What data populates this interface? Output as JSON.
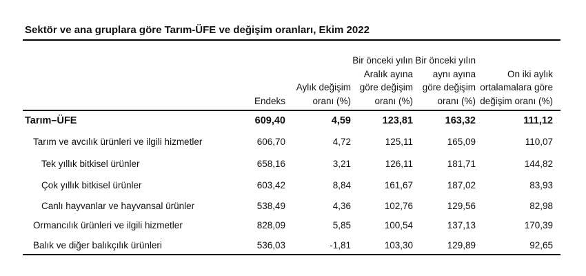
{
  "title": "Sektör ve ana gruplara göre Tarım-ÜFE ve değişim oranları, Ekim 2022",
  "columns": [
    "Endeks",
    "Aylık değişim oranı (%)",
    "Bir önceki yılın Aralık ayına göre değişim oranı (%)",
    "Bir önceki yılın aynı ayına göre değişim oranı (%)",
    "On iki aylık ortalamalara göre değişim oranı (%)"
  ],
  "rows": [
    {
      "label": "Tarım–ÜFE",
      "level": 0,
      "bold": true,
      "values": [
        "609,40",
        "4,59",
        "123,81",
        "163,32",
        "111,12"
      ]
    },
    {
      "label": "Tarım ve avcılık ürünleri ve ilgili hizmetler",
      "level": 1,
      "values": [
        "606,70",
        "4,72",
        "125,11",
        "165,09",
        "110,07"
      ]
    },
    {
      "label": "Tek yıllık bitkisel ürünler",
      "level": 2,
      "values": [
        "658,16",
        "3,21",
        "126,11",
        "181,71",
        "144,82"
      ]
    },
    {
      "label": "Çok yıllık bitkisel ürünler",
      "level": 2,
      "values": [
        "603,42",
        "8,84",
        "161,67",
        "187,02",
        "83,93"
      ]
    },
    {
      "label": "Canlı hayvanlar ve hayvansal ürünler",
      "level": 2,
      "values": [
        "538,49",
        "4,36",
        "102,76",
        "129,56",
        "82,98"
      ]
    },
    {
      "label": "Ormancılık ürünleri ve ilgili hizmetler",
      "level": 1,
      "values": [
        "828,09",
        "5,85",
        "100,54",
        "137,13",
        "170,39"
      ]
    },
    {
      "label": "Balık ve diğer balıkçılık ürünleri",
      "level": 1,
      "values": [
        "536,03",
        "-1,81",
        "103,30",
        "129,89",
        "92,65"
      ]
    }
  ]
}
